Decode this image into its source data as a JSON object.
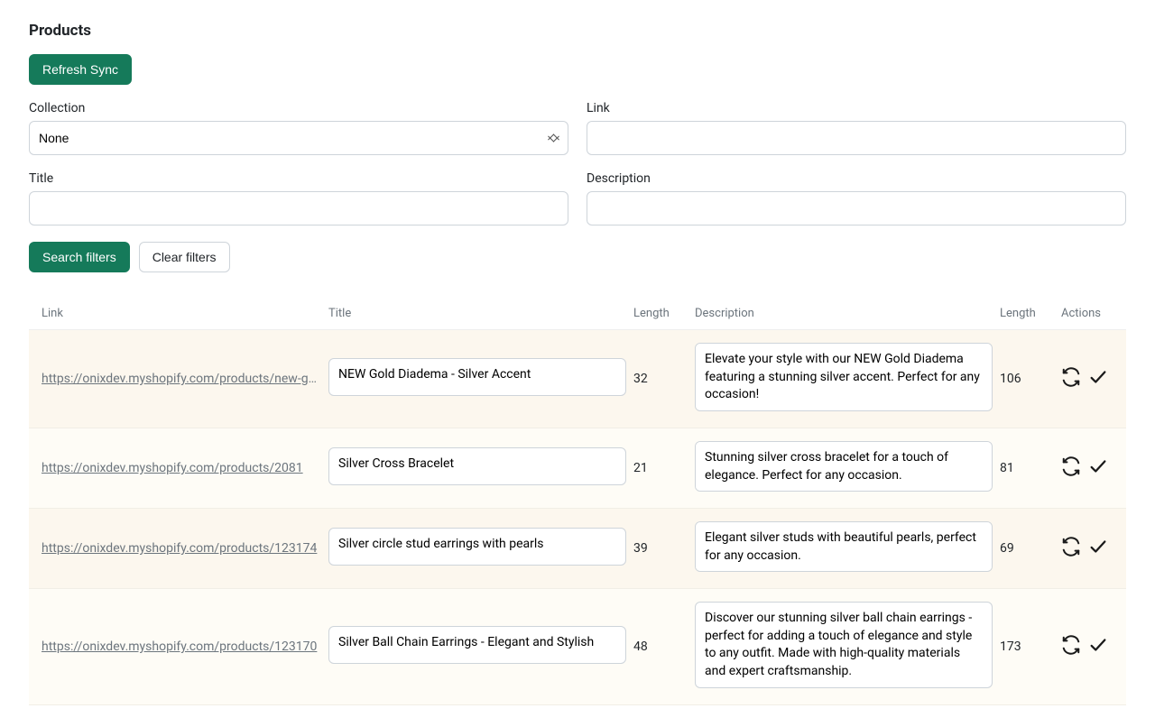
{
  "page": {
    "title": "Products"
  },
  "buttons": {
    "refresh_sync": "Refresh Sync",
    "search_filters": "Search filters",
    "clear_filters": "Clear filters"
  },
  "filters": {
    "collection": {
      "label": "Collection",
      "value": "None"
    },
    "link": {
      "label": "Link",
      "value": ""
    },
    "title": {
      "label": "Title",
      "value": ""
    },
    "description": {
      "label": "Description",
      "value": ""
    }
  },
  "table": {
    "columns": {
      "link": "Link",
      "title": "Title",
      "length1": "Length",
      "description": "Description",
      "length2": "Length",
      "actions": "Actions"
    },
    "rows": [
      {
        "link_display": "https://onixdev.myshopify.com/products/new-gold-d...",
        "title": "NEW Gold Diadema - Silver Accent",
        "title_length": "32",
        "description": "Elevate your style with our NEW Gold Diadema featuring a stunning silver accent. Perfect for any occasion!",
        "desc_length": "106"
      },
      {
        "link_display": "https://onixdev.myshopify.com/products/2081",
        "title": "Silver Cross Bracelet",
        "title_length": "21",
        "description": "Stunning silver cross bracelet for a touch of elegance. Perfect for any occasion.",
        "desc_length": "81"
      },
      {
        "link_display": "https://onixdev.myshopify.com/products/123174",
        "title": "Silver circle stud earrings with pearls",
        "title_length": "39",
        "description": "Elegant silver studs with beautiful pearls, perfect for any occasion.",
        "desc_length": "69"
      },
      {
        "link_display": "https://onixdev.myshopify.com/products/123170",
        "title": "Silver Ball Chain Earrings - Elegant and Stylish",
        "title_length": "48",
        "description": "Discover our stunning silver ball chain earrings - perfect for adding a touch of elegance and style to any outfit. Made with high-quality materials and expert craftsmanship.",
        "desc_length": "173"
      }
    ]
  },
  "colors": {
    "primary_button_bg": "#157a5a",
    "row_stripe_light": "#fcf7ee",
    "row_stripe_lighter": "#fefcf6",
    "border": "#ced4da",
    "text_muted": "#6c757d"
  }
}
